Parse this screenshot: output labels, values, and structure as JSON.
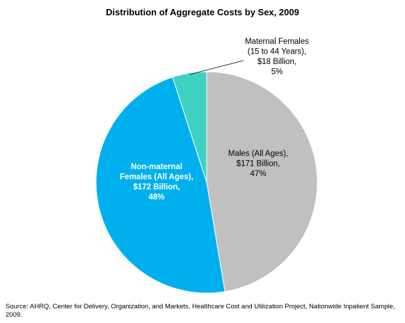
{
  "chart_data": {
    "type": "pie",
    "title": "Distribution of Aggregate Costs by Sex, 2009",
    "slices": [
      {
        "label": "Males (All Ages),",
        "value_label": "$171 Billion,",
        "percent_label": "47%",
        "value": 171,
        "percent": 47,
        "color": "#C0C0C0",
        "text_color": "#000000",
        "bold": false
      },
      {
        "label": "Non-maternal Females (All Ages),",
        "value_label": "$172 Billion,",
        "percent_label": "48%",
        "value": 172,
        "percent": 48,
        "color": "#00B0EE",
        "text_color": "#ffffff",
        "bold": true
      },
      {
        "label": "Maternal Females (15 to 44 Years),",
        "value_label": "$18 Billion,",
        "percent_label": "5%",
        "value": 18,
        "percent": 5,
        "color": "#3FD1C2",
        "text_color": "#000000",
        "bold": false
      }
    ],
    "start_angle_deg": 0,
    "direction": "clockwise",
    "legend": "none"
  },
  "source_text": "Source: AHRQ, Center for Delivery, Organization, and Markets, Healthcare Cost and Utilization Project, Nationwide Inpatient Sample, 2009."
}
